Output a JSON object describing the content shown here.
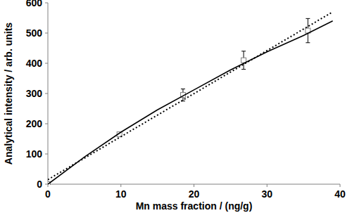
{
  "chart_data": {
    "type": "scatter",
    "x_label": "Mn mass fraction / (ng/g)",
    "y_label": "Analytical intensity / arb. units",
    "xlim": [
      0,
      40
    ],
    "ylim": [
      0,
      600
    ],
    "xticks": [
      0,
      10,
      20,
      30,
      40
    ],
    "yticks": [
      0,
      100,
      200,
      300,
      400,
      500,
      600
    ],
    "series": [
      {
        "type": "scatter",
        "marker": "square",
        "color": "#808080",
        "x": [
          0,
          9.8,
          18.5,
          26.8,
          35.6
        ],
        "values": [
          0,
          165,
          295,
          410,
          508
        ],
        "errors": [
          2,
          5,
          20,
          30,
          40
        ]
      },
      {
        "type": "line",
        "line_style": "solid",
        "color": "#000000",
        "x": [
          0,
          5,
          10,
          15,
          20,
          25,
          30,
          35,
          39
        ],
        "values": [
          0,
          90,
          172,
          246,
          312,
          378,
          438,
          492,
          540
        ]
      },
      {
        "type": "line",
        "line_style": "dotted",
        "color": "#000000",
        "x": [
          0,
          39
        ],
        "values": [
          15,
          570
        ]
      }
    ]
  }
}
